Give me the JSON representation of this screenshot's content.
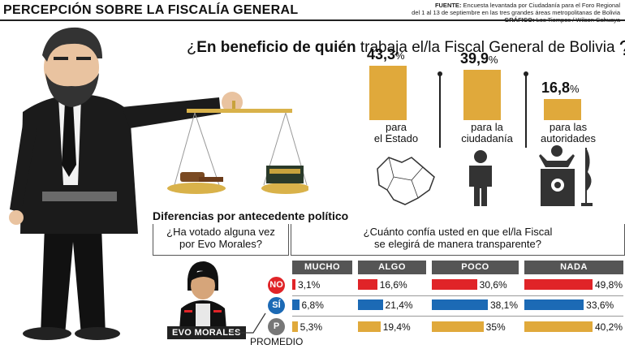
{
  "header": {
    "title": "PERCEPCIÓN SOBRE LA FISCALÍA GENERAL",
    "source_label": "FUENTE:",
    "source_text": "Encuesta levantada por Ciudadanía para el Foro Regional",
    "source_text2": "del 1 al 13 de septiembre en las tres grandes áreas metropolitanas de Bolivia",
    "graphic_label": "GRÁFICO:",
    "graphic_text": "Los Tiempos / Wilson Cahuaya"
  },
  "question": {
    "open": "¿",
    "bold": "En beneficio de quién",
    "rest": " trabaja el/la Fiscal General de Bolivia",
    "close": "?"
  },
  "colors": {
    "gold": "#E0A93B",
    "red": "#E02428",
    "blue": "#1C6AB5",
    "grey": "#555555"
  },
  "chart_data": [
    {
      "type": "bar",
      "title": "¿En beneficio de quién trabaja el/la Fiscal General de Bolivia?",
      "categories": [
        "para el Estado",
        "para la ciudadanía",
        "para las autoridades"
      ],
      "values": [
        43.3,
        39.9,
        16.8
      ],
      "value_labels": [
        "43,3%",
        "39,9%",
        "16,8%"
      ],
      "label_lines": [
        [
          "para",
          "el Estado"
        ],
        [
          "para la",
          "ciudadanía"
        ],
        [
          "para las",
          "autoridades"
        ]
      ],
      "ylim": [
        0,
        45
      ]
    },
    {
      "type": "bar",
      "title": "Diferencias por antecedente político",
      "row_question": "¿Ha votado alguna vez por Evo Morales?",
      "row_question_lines": [
        "¿Ha votado alguna vez",
        "por Evo Morales?"
      ],
      "col_question_lines": [
        "¿Cuánto confía usted en que el/la Fiscal",
        "se elegirá de manera transparente?"
      ],
      "categories": [
        "MUCHO",
        "ALGO",
        "POCO",
        "NADA"
      ],
      "series": [
        {
          "name": "NO",
          "color": "#E02428",
          "values": [
            3.1,
            16.6,
            30.6,
            49.8
          ],
          "labels": [
            "3,1%",
            "16,6%",
            "30,6%",
            "49,8%"
          ]
        },
        {
          "name": "SÍ",
          "color": "#1C6AB5",
          "values": [
            6.8,
            21.4,
            38.1,
            33.6
          ],
          "labels": [
            "6,8%",
            "21,4%",
            "38,1%",
            "33,6%"
          ]
        },
        {
          "name": "P",
          "color": "#E0A93B",
          "values": [
            5.3,
            19.4,
            35,
            40.2
          ],
          "labels": [
            "5,3%",
            "19,4%",
            "35%",
            "40,2%"
          ]
        }
      ],
      "ylim": [
        0,
        50
      ]
    }
  ],
  "evo_label": "EVO MORALES",
  "promedio_label": "PROMEDIO"
}
